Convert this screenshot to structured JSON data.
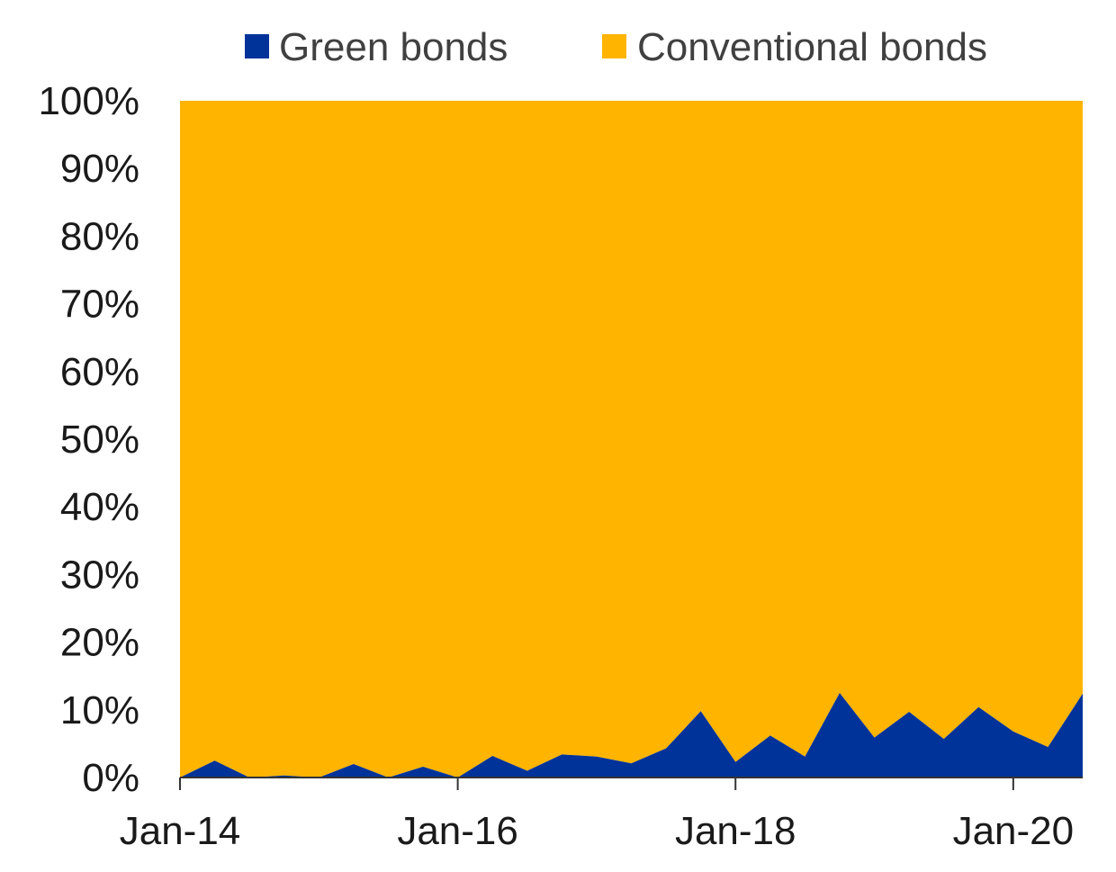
{
  "chart_data": {
    "type": "area",
    "stacked": true,
    "percent_stacked": true,
    "x_dates": [
      "2014-01",
      "2014-04",
      "2014-07",
      "2014-10",
      "2015-01",
      "2015-04",
      "2015-07",
      "2015-10",
      "2016-01",
      "2016-04",
      "2016-07",
      "2016-10",
      "2017-01",
      "2017-04",
      "2017-07",
      "2017-10",
      "2018-01",
      "2018-04",
      "2018-07",
      "2018-10",
      "2019-01",
      "2019-04",
      "2019-07",
      "2019-10",
      "2020-01",
      "2020-04",
      "2020-07"
    ],
    "series": [
      {
        "name": "Green bonds",
        "color": "#003399",
        "values": [
          0,
          2.5,
          0,
          0.3,
          0,
          2,
          0,
          1.6,
          0,
          3.2,
          1,
          3.4,
          3.1,
          2.1,
          4.3,
          9.8,
          2.3,
          6.2,
          3.1,
          12.5,
          5.9,
          9.7,
          5.7,
          10.4,
          6.8,
          4.5,
          12.4
        ]
      },
      {
        "name": "Conventional bonds",
        "color": "#FFB400",
        "values": [
          100,
          97.5,
          100,
          99.7,
          100,
          98,
          100,
          98.4,
          100,
          96.8,
          99,
          96.6,
          96.9,
          97.9,
          95.7,
          90.2,
          97.7,
          93.8,
          96.9,
          87.5,
          94.1,
          90.3,
          94.3,
          89.6,
          93.2,
          95.5,
          87.6
        ]
      }
    ],
    "ylim": [
      0,
      100
    ],
    "yticks": [
      "0%",
      "10%",
      "20%",
      "30%",
      "40%",
      "50%",
      "60%",
      "70%",
      "80%",
      "90%",
      "100%"
    ],
    "xticks": [
      {
        "date": "2014-01",
        "label": "Jan-14"
      },
      {
        "date": "2016-01",
        "label": "Jan-16"
      },
      {
        "date": "2018-01",
        "label": "Jan-18"
      },
      {
        "date": "2020-01",
        "label": "Jan-20"
      }
    ],
    "legend_position": "top",
    "grid": false,
    "axis_color": "#333333"
  }
}
